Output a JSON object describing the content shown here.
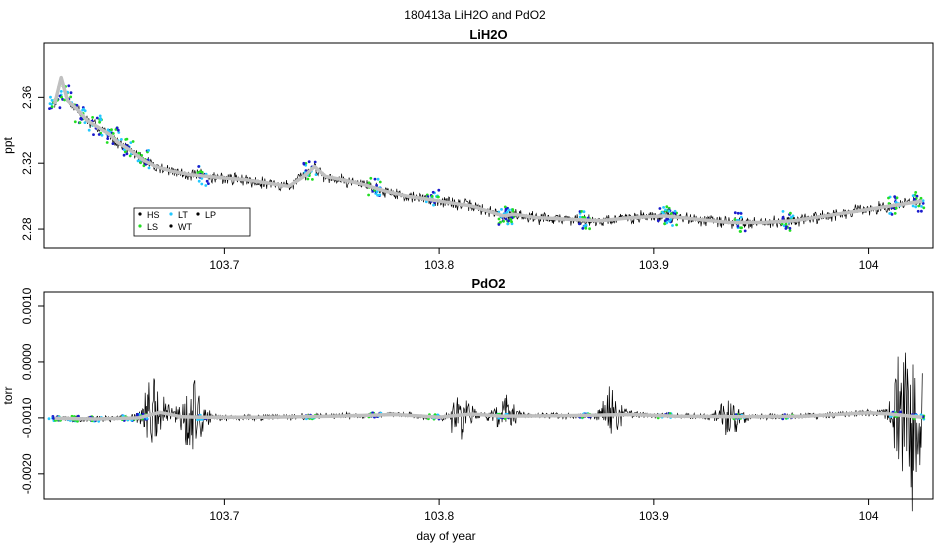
{
  "figure": {
    "title": "180413a   LiH2O and PdO2",
    "xlabel": "day of year"
  },
  "chart_data": [
    {
      "type": "line",
      "title": "LiH2O",
      "ylabel": "ppt",
      "xlabel": "",
      "xlim": [
        103.616,
        104.03
      ],
      "ylim": [
        2.2685,
        2.393
      ],
      "x_ticks": [
        103.7,
        103.8,
        103.9,
        104.0
      ],
      "y_ticks": [
        2.28,
        2.32,
        2.36
      ],
      "legend": {
        "position": "bottom-left",
        "entries": [
          {
            "name": "HS",
            "color": "#000000"
          },
          {
            "name": "LS",
            "color": "#22dd22"
          },
          {
            "name": "LT",
            "color": "#22c8ff"
          },
          {
            "name": "WT",
            "color": "#000000"
          },
          {
            "name": "LP",
            "color": "#000000"
          }
        ]
      },
      "series": [
        {
          "name": "",
          "color": "#c0c0c0",
          "x": [
            103.621,
            103.624,
            103.627,
            103.632,
            103.636,
            103.641,
            103.646,
            103.651,
            103.656,
            103.662,
            103.668,
            103.676,
            103.684,
            103.692,
            103.7,
            103.71,
            103.72,
            103.73,
            103.737,
            103.742,
            103.747,
            103.755,
            103.765,
            103.775,
            103.785,
            103.795,
            103.805,
            103.815,
            103.825,
            103.83,
            103.835,
            103.845,
            103.86,
            103.875,
            103.89,
            103.905,
            103.92,
            103.935,
            103.95,
            103.965,
            103.98,
            103.995,
            104.01,
            104.025
          ],
          "y": [
            2.356,
            2.372,
            2.358,
            2.352,
            2.346,
            2.342,
            2.338,
            2.332,
            2.328,
            2.322,
            2.318,
            2.315,
            2.313,
            2.312,
            2.311,
            2.31,
            2.308,
            2.306,
            2.312,
            2.318,
            2.312,
            2.31,
            2.307,
            2.303,
            2.3,
            2.298,
            2.296,
            2.294,
            2.29,
            2.288,
            2.289,
            2.287,
            2.286,
            2.285,
            2.287,
            2.288,
            2.286,
            2.284,
            2.284,
            2.285,
            2.288,
            2.291,
            2.294,
            2.297
          ]
        }
      ]
    },
    {
      "type": "line",
      "title": "PdO2",
      "ylabel": "torr",
      "xlabel": "day of year",
      "xlim": [
        103.616,
        104.03
      ],
      "ylim": [
        -0.00245,
        0.00125
      ],
      "x_ticks": [
        103.7,
        103.8,
        103.9,
        104.0
      ],
      "y_ticks": [
        -0.002,
        -0.001,
        0.0,
        0.001
      ],
      "y_tick_labels": [
        "-0.0020",
        "-0.0010",
        "0.0000",
        "0.0010"
      ],
      "series": [
        {
          "name": "",
          "color": "#c0c0c0",
          "x": [
            103.621,
            103.64,
            103.66,
            103.665,
            103.67,
            103.68,
            103.69,
            103.72,
            103.75,
            103.78,
            103.8,
            103.815,
            103.83,
            103.86,
            103.89,
            103.91,
            103.94,
            103.97,
            104.0,
            104.01,
            104.02,
            104.025
          ],
          "y": [
            -0.00101,
            -0.00102,
            -0.001,
            -0.00095,
            -0.0009,
            -0.00098,
            -0.00099,
            -0.00099,
            -0.00097,
            -0.00094,
            -0.00099,
            -0.00093,
            -0.00097,
            -0.00096,
            -0.00094,
            -0.00097,
            -0.00098,
            -0.00097,
            -0.00091,
            -0.00093,
            -0.00097,
            -0.00099
          ]
        }
      ]
    }
  ]
}
